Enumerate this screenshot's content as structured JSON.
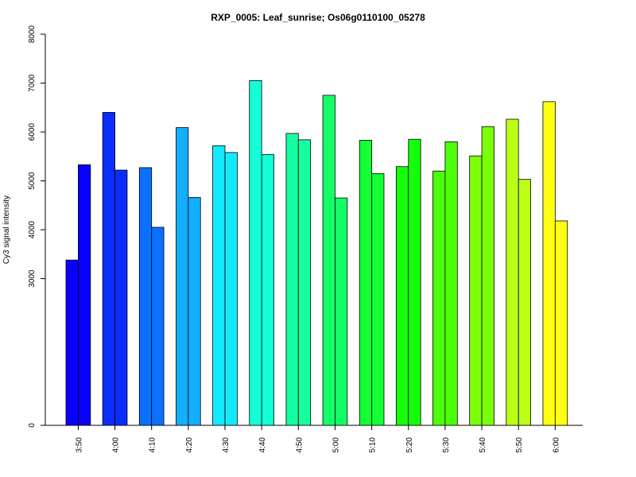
{
  "chart_data": {
    "type": "bar",
    "title": "RXP_0005: Leaf_sunrise; Os06g0110100_05278",
    "xlabel": "",
    "ylabel": "Cy3 signal intensity",
    "categories": [
      "3:50",
      "4:00",
      "4:10",
      "4:20",
      "4:30",
      "4:40",
      "4:50",
      "5:00",
      "5:10",
      "5:20",
      "5:30",
      "5:40",
      "5:50",
      "6:00"
    ],
    "y_ticks": [
      "0",
      "3000",
      "4000",
      "5000",
      "6000",
      "7000",
      "8000"
    ],
    "ylim": [
      0,
      8000
    ],
    "grid": false,
    "legend": "none",
    "series": [
      {
        "values": [
          3380,
          6400,
          5270,
          6090,
          5720,
          7050,
          5970,
          6750,
          5830,
          5290,
          5200,
          5510,
          6260,
          6620
        ]
      },
      {
        "values": [
          5330,
          5220,
          4050,
          4660,
          5580,
          5540,
          5840,
          4650,
          5150,
          5850,
          5800,
          6110,
          5030,
          4180
        ]
      }
    ],
    "colors": [
      "#0A00FF",
      "#0A2EFF",
      "#0C70FF",
      "#14AEFF",
      "#14EAFF",
      "#14FFD8",
      "#14FFA0",
      "#14FF66",
      "#14FF34",
      "#14FF0A",
      "#4CFF0A",
      "#7CFF0A",
      "#BCFF14",
      "#FFFF14"
    ]
  }
}
